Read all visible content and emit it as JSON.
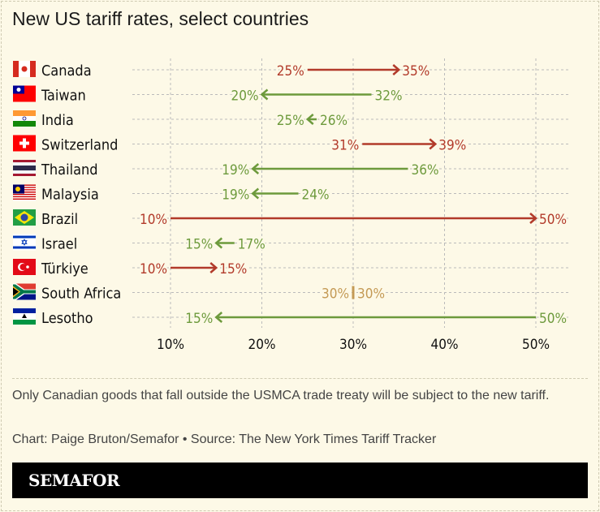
{
  "title": "New US tariff rates, select countries",
  "chart_data": {
    "type": "arrow-dumbbell",
    "title": "New US tariff rates, select countries",
    "xlim": [
      10,
      50
    ],
    "x_ticks": [
      "10%",
      "20%",
      "30%",
      "40%",
      "50%"
    ],
    "x_tick_values": [
      10,
      20,
      30,
      40,
      50
    ],
    "grid": true,
    "colors": {
      "increase": "#b23a2a",
      "decrease": "#6d9a3c",
      "unchanged": "#c49a55"
    },
    "rows": [
      {
        "country": "Canada",
        "flag": "canada-flag",
        "from": 25,
        "to": 35
      },
      {
        "country": "Taiwan",
        "flag": "taiwan-flag",
        "from": 32,
        "to": 20
      },
      {
        "country": "India",
        "flag": "india-flag",
        "from": 26,
        "to": 25
      },
      {
        "country": "Switzerland",
        "flag": "switzerland-flag",
        "from": 31,
        "to": 39
      },
      {
        "country": "Thailand",
        "flag": "thailand-flag",
        "from": 36,
        "to": 19
      },
      {
        "country": "Malaysia",
        "flag": "malaysia-flag",
        "from": 24,
        "to": 19
      },
      {
        "country": "Brazil",
        "flag": "brazil-flag",
        "from": 10,
        "to": 50
      },
      {
        "country": "Israel",
        "flag": "israel-flag",
        "from": 17,
        "to": 15
      },
      {
        "country": "Türkiye",
        "flag": "turkiye-flag",
        "from": 10,
        "to": 15
      },
      {
        "country": "South Africa",
        "flag": "south-africa-flag",
        "from": 30,
        "to": 30
      },
      {
        "country": "Lesotho",
        "flag": "lesotho-flag",
        "from": 50,
        "to": 15
      }
    ]
  },
  "note": "Only Canadian goods that fall outside the USMCA trade treaty will be subject to the new tariff.",
  "credit": "Chart: Paige Bruton/Semafor  • Source: The New York Times Tariff Tracker",
  "logo": "SEMAFOR"
}
